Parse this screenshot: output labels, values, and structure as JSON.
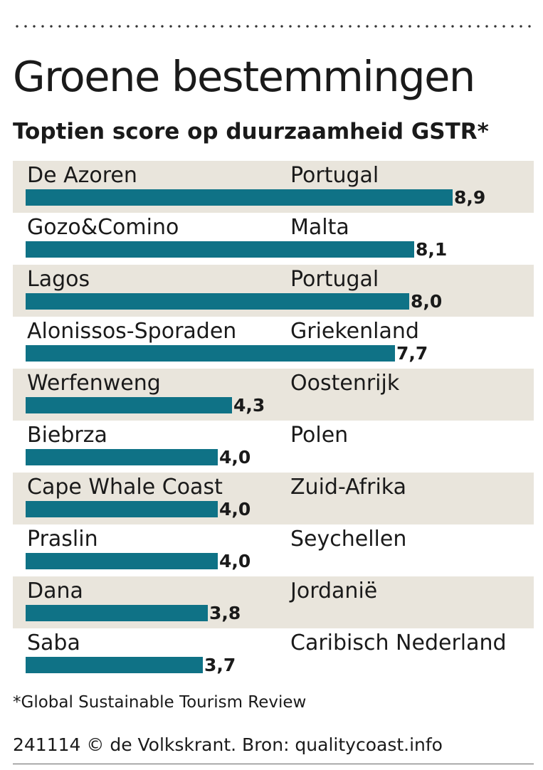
{
  "chart_data": {
    "type": "bar",
    "orientation": "horizontal",
    "title": "Groene bestemmingen",
    "subtitle": "Toptien score op duurzaamheid GSTR*",
    "categories": [
      "De Azoren",
      "Gozo&Comino",
      "Lagos",
      "Alonissos-Sporaden",
      "Werfenweng",
      "Biebrza",
      "Cape Whale Coast",
      "Praslin",
      "Dana",
      "Saba"
    ],
    "countries": [
      "Portugal",
      "Malta",
      "Portugal",
      "Griekenland",
      "Oostenrijk",
      "Polen",
      "Zuid-Afrika",
      "Seychellen",
      "Jordanië",
      "Caribisch Nederland"
    ],
    "values": [
      8.9,
      8.1,
      8.0,
      7.7,
      4.3,
      4.0,
      4.0,
      4.0,
      3.8,
      3.7
    ],
    "value_labels": [
      "8,9",
      "8,1",
      "8,0",
      "7,7",
      "4,3",
      "4,0",
      "4,0",
      "4,0",
      "3,8",
      "3,7"
    ],
    "xlim": [
      0,
      8.9
    ],
    "grid": false,
    "legend": "none",
    "bar_color": "#0f7286",
    "row_shade_color": "#e9e5dc"
  },
  "footnote": "*Global Sustainable Tourism Review",
  "credit": "241114 © de Volkskrant. Bron: qualitycoast.info"
}
